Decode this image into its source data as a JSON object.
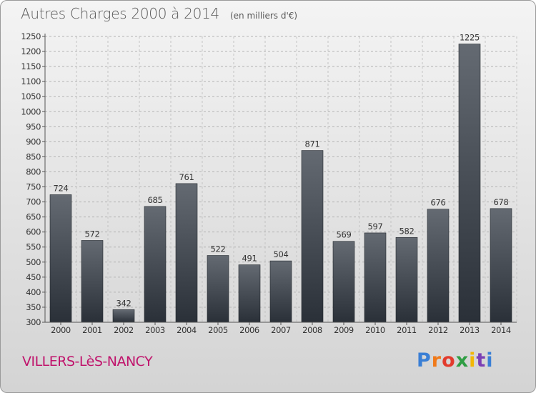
{
  "header": {
    "title": "Autres Charges 2000 à 2014",
    "subtitle": "(en milliers d'€)"
  },
  "footer": {
    "place": "VILLERS-LèS-NANCY",
    "brand": "Proxiti",
    "brand_colors": [
      "#3a7fd5",
      "#f07a1a",
      "#e23b2d",
      "#2f9e44",
      "#f2b705",
      "#7b3fb5",
      "#3a7fd5"
    ]
  },
  "chart_data": {
    "type": "bar",
    "title": "Autres Charges 2000 à 2014",
    "subtitle": "(en milliers d'€)",
    "categories": [
      "2000",
      "2001",
      "2002",
      "2003",
      "2004",
      "2005",
      "2006",
      "2007",
      "2008",
      "2009",
      "2010",
      "2011",
      "2012",
      "2013",
      "2014"
    ],
    "values": [
      724,
      572,
      342,
      685,
      761,
      522,
      491,
      504,
      871,
      569,
      597,
      582,
      676,
      1225,
      678
    ],
    "ylim": [
      300,
      1250
    ],
    "yticks": [
      300,
      350,
      400,
      450,
      500,
      550,
      600,
      650,
      700,
      750,
      800,
      850,
      900,
      950,
      1000,
      1050,
      1100,
      1150,
      1200,
      1250
    ],
    "grid": true,
    "bar_color_top": "#646a72",
    "bar_color_bottom": "#2a3038"
  }
}
